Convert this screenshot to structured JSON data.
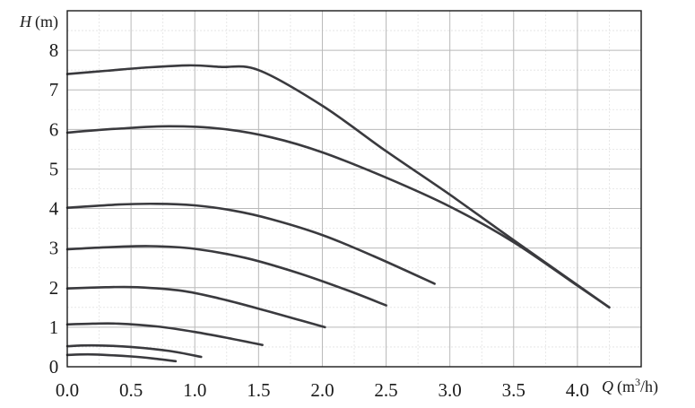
{
  "chart_data": {
    "type": "line",
    "xlabel": {
      "var": "Q",
      "unit": "(m",
      "sup": "3",
      "unit_tail": "/h)"
    },
    "ylabel": {
      "var": "H",
      "unit": "(m)"
    },
    "xlim": [
      0.0,
      4.5
    ],
    "ylim": [
      0,
      9
    ],
    "x_ticks": [
      "0.0",
      "0.5",
      "1.0",
      "1.5",
      "2.0",
      "2.5",
      "3.0",
      "3.5",
      "4.0"
    ],
    "y_ticks": [
      "0",
      "1",
      "2",
      "3",
      "4",
      "5",
      "6",
      "7",
      "8"
    ],
    "grid": true,
    "minor_grid": true,
    "curve_color": "#3a3a3e",
    "series": [
      {
        "x": [
          0.0,
          0.3,
          0.6,
          0.95,
          1.2,
          1.5,
          2.0,
          2.5,
          3.0,
          3.5,
          4.25
        ],
        "y": [
          7.4,
          7.48,
          7.56,
          7.62,
          7.58,
          7.5,
          6.6,
          5.45,
          4.35,
          3.2,
          1.5
        ]
      },
      {
        "x": [
          0.0,
          0.4,
          0.8,
          1.2,
          1.6,
          2.0,
          2.5,
          3.0,
          3.5,
          4.0,
          4.25
        ],
        "y": [
          5.92,
          6.02,
          6.08,
          6.02,
          5.8,
          5.42,
          4.78,
          4.05,
          3.15,
          2.05,
          1.5
        ]
      },
      {
        "x": [
          0.0,
          0.4,
          0.7,
          1.0,
          1.3,
          1.6,
          2.0,
          2.4,
          2.88
        ],
        "y": [
          4.02,
          4.1,
          4.12,
          4.08,
          3.95,
          3.73,
          3.33,
          2.8,
          2.1
        ]
      },
      {
        "x": [
          0.0,
          0.3,
          0.65,
          1.0,
          1.4,
          1.8,
          2.2,
          2.5
        ],
        "y": [
          2.97,
          3.02,
          3.05,
          2.98,
          2.75,
          2.38,
          1.93,
          1.55
        ]
      },
      {
        "x": [
          0.0,
          0.3,
          0.55,
          0.9,
          1.2,
          1.5,
          1.8,
          2.02
        ],
        "y": [
          1.98,
          2.01,
          2.01,
          1.92,
          1.72,
          1.47,
          1.2,
          1.0
        ]
      },
      {
        "x": [
          0.0,
          0.2,
          0.4,
          0.7,
          1.0,
          1.3,
          1.53
        ],
        "y": [
          1.07,
          1.09,
          1.09,
          1.02,
          0.88,
          0.7,
          0.55
        ]
      },
      {
        "x": [
          0.0,
          0.2,
          0.5,
          0.8,
          1.05
        ],
        "y": [
          0.52,
          0.54,
          0.5,
          0.4,
          0.25
        ]
      },
      {
        "x": [
          0.0,
          0.2,
          0.5,
          0.7,
          0.85
        ],
        "y": [
          0.3,
          0.31,
          0.26,
          0.2,
          0.14
        ]
      }
    ]
  }
}
